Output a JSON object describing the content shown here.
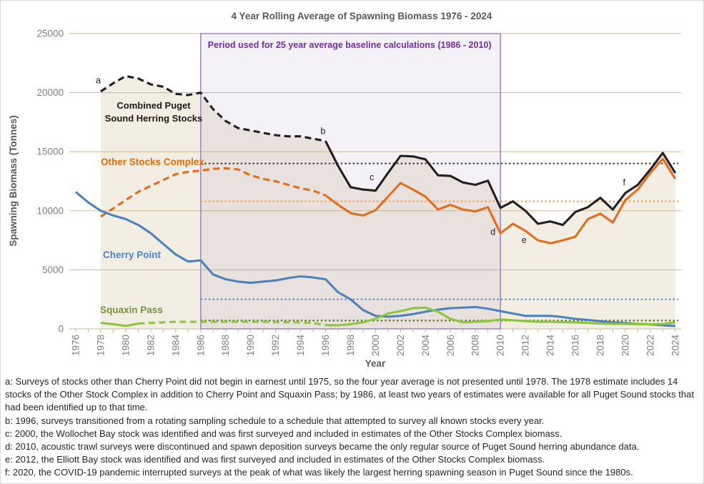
{
  "title": "4 Year Rolling Average of Spawning Biomass 1976 - 2024",
  "chart_data": {
    "type": "line",
    "title": "4 Year Rolling Average of Spawning Biomass 1976 - 2024",
    "xlabel": "Year",
    "ylabel": "Spawning Biomass (Tonnes)",
    "ylim": [
      0,
      25000
    ],
    "yticks": [
      0,
      5000,
      10000,
      15000,
      20000,
      25000
    ],
    "xticks": [
      1976,
      1978,
      1980,
      1982,
      1984,
      1986,
      1988,
      1990,
      1992,
      1994,
      1996,
      1998,
      2000,
      2002,
      2004,
      2006,
      2008,
      2010,
      2012,
      2014,
      2016,
      2018,
      2020,
      2022,
      2024
    ],
    "xrange": [
      1976,
      2024
    ],
    "grid": "horizontal",
    "colors": {
      "grid": "#c8bc92",
      "area_fill": "#f2eee3",
      "title_text": "#595959",
      "tick_text": "#7f7f7f",
      "annotation_text": "#1f1f1f"
    },
    "baseline_region": {
      "label": "Period used for 25 year average baseline calculations (1986 - 2010)",
      "from": 1986,
      "to": 2010,
      "fill": "rgba(128,100,162,0.09)",
      "border": "#9b85c2",
      "label_color": "#7030a0"
    },
    "series": [
      {
        "name": "Combined Puget Sound Herring Stocks",
        "label_lines": [
          "Combined Puget",
          "Sound Herring Stocks"
        ],
        "color": "#231f20",
        "label_color": "#1a1a1a",
        "baseline": 14000,
        "baseline_color": "#453f3a",
        "start_year": 1978,
        "segments": [
          {
            "from": 1978,
            "to": 1996,
            "dashed": true
          },
          {
            "from": 1996,
            "to": 2024,
            "dashed": false
          }
        ],
        "values": [
          20100,
          20800,
          21400,
          21200,
          20700,
          20500,
          19900,
          19800,
          20000,
          18600,
          17600,
          17000,
          16800,
          16600,
          16400,
          16300,
          16300,
          16100,
          15900,
          13800,
          12000,
          11800,
          11700,
          13200,
          14650,
          14600,
          14350,
          13000,
          12950,
          12400,
          12200,
          12550,
          10250,
          10800,
          10000,
          8900,
          9100,
          8800,
          9900,
          10300,
          11100,
          10100,
          11500,
          12200,
          13500,
          14900,
          13200
        ]
      },
      {
        "name": "Other Stocks Complex",
        "label_lines": [
          "Other Stocks Complex"
        ],
        "color": "#e36d1e",
        "label_color": "#e36c0a",
        "baseline": 10800,
        "baseline_color": "#f2a25f",
        "start_year": 1978,
        "segments": [
          {
            "from": 1978,
            "to": 1996,
            "dashed": true
          },
          {
            "from": 1996,
            "to": 2024,
            "dashed": false
          }
        ],
        "values": [
          9500,
          10200,
          10900,
          11600,
          12100,
          12600,
          13100,
          13300,
          13400,
          13550,
          13600,
          13500,
          13000,
          12700,
          12500,
          12200,
          11900,
          11700,
          11300,
          10500,
          9800,
          9600,
          10050,
          11200,
          12350,
          11800,
          11200,
          10100,
          10500,
          10100,
          9950,
          10300,
          8100,
          8900,
          8300,
          7500,
          7250,
          7500,
          7800,
          9300,
          9750,
          9000,
          10900,
          11800,
          13200,
          14400,
          12700
        ]
      },
      {
        "name": "Cherry Point",
        "label_lines": [
          "Cherry Point"
        ],
        "color": "#4f81bd",
        "label_color": "#4f81bd",
        "baseline": 2500,
        "baseline_color": "#5b8ec4",
        "start_year": 1976,
        "segments": [
          {
            "from": 1976,
            "to": 2024,
            "dashed": false
          }
        ],
        "values": [
          11600,
          10700,
          10000,
          9600,
          9300,
          8800,
          8100,
          7200,
          6300,
          5700,
          5800,
          4600,
          4200,
          4000,
          3900,
          4000,
          4100,
          4300,
          4450,
          4350,
          4200,
          3100,
          2500,
          1600,
          1100,
          1030,
          1100,
          1250,
          1450,
          1630,
          1750,
          1800,
          1850,
          1700,
          1500,
          1300,
          1100,
          1100,
          1100,
          1000,
          850,
          750,
          650,
          550,
          500,
          420,
          380,
          300,
          250
        ]
      },
      {
        "name": "Squaxin Pass",
        "label_lines": [
          "Squaxin Pass"
        ],
        "color": "#8cc63e",
        "label_color": "#76933c",
        "baseline": 700,
        "baseline_color": "#5a701f",
        "start_year": 1978,
        "segments": [
          {
            "from": 1978,
            "to": 1981,
            "dashed": false
          },
          {
            "from": 1981,
            "to": 1996,
            "dashed": true
          },
          {
            "from": 1996,
            "to": 2024,
            "dashed": false
          }
        ],
        "values": [
          500,
          400,
          250,
          450,
          500,
          550,
          600,
          600,
          600,
          600,
          600,
          600,
          600,
          600,
          580,
          560,
          550,
          500,
          320,
          300,
          400,
          550,
          850,
          1300,
          1500,
          1750,
          1800,
          1450,
          850,
          550,
          600,
          650,
          800,
          730,
          650,
          600,
          600,
          570,
          550,
          500,
          450,
          430,
          420,
          400,
          400,
          420,
          550
        ]
      }
    ],
    "annotations": [
      {
        "label": "a",
        "year": 1977.8,
        "value": 20800
      },
      {
        "label": "b",
        "year": 1995.8,
        "value": 16500
      },
      {
        "label": "c",
        "year": 1999.7,
        "value": 12600
      },
      {
        "label": "d",
        "year": 2009.4,
        "value": 7950
      },
      {
        "label": "e",
        "year": 2011.9,
        "value": 7250
      },
      {
        "label": "f",
        "year": 2019.9,
        "value": 12150
      }
    ]
  },
  "footnotes": [
    {
      "id": "a",
      "text": "a: Surveys of stocks other than Cherry Point did not begin in earnest until 1975, so the four year average is not presented until 1978. The 1978 estimate includes 14 stocks of the Other Stock Complex in addition to Cherry Point and Squaxin Pass; by 1986, at least two years of estimates were available for all Puget Sound stocks that had been identified up to that time."
    },
    {
      "id": "b",
      "text": "b: 1996, surveys transitioned from a rotating sampling schedule to a schedule that attempted to survey all known stocks every year."
    },
    {
      "id": "c",
      "text": "c: 2000, the Wollochet Bay stock was identified and was first surveyed and included in estimates of the Other Stocks Complex biomass."
    },
    {
      "id": "d",
      "text": "d: 2010, acoustic trawl surveys were discontinued and spawn deposition surveys became the only regular source of Puget Sound herring abundance data."
    },
    {
      "id": "e",
      "text": "e: 2012, the Elliott Bay stock was identified and was first surveyed and included in estimates of the Other Stocks Complex biomass."
    },
    {
      "id": "f",
      "text": "f: 2020, the COVID-19 pandemic interrupted surveys at the peak of what was likely the largest herring spawning season in Puget Sound since the 1980s."
    }
  ]
}
